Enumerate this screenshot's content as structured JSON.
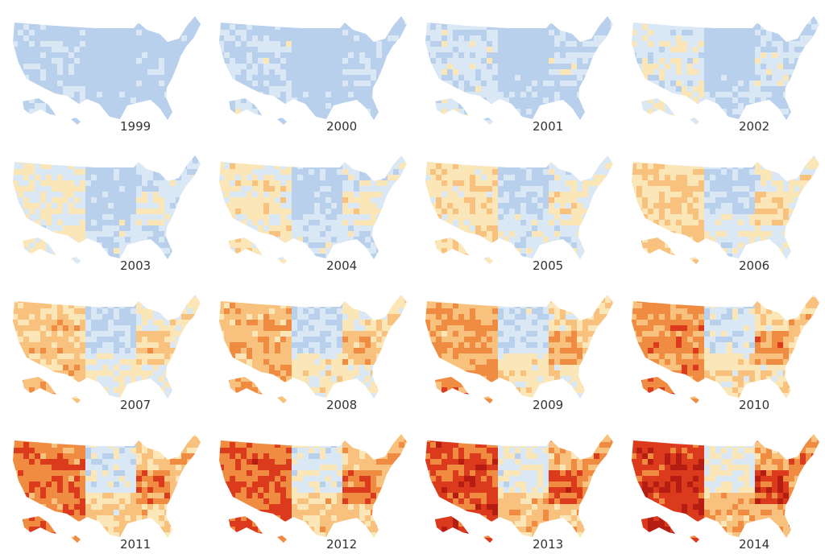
{
  "panels": [
    {
      "label": "1999"
    },
    {
      "label": "2000"
    },
    {
      "label": "2001"
    },
    {
      "label": "2002"
    },
    {
      "label": "2003"
    },
    {
      "label": "2004"
    },
    {
      "label": "2005"
    },
    {
      "label": "2006"
    },
    {
      "label": "2007"
    },
    {
      "label": "2008"
    },
    {
      "label": "2009"
    },
    {
      "label": "2010"
    },
    {
      "label": "2011"
    },
    {
      "label": "2012"
    },
    {
      "label": "2013"
    },
    {
      "label": "2014"
    }
  ]
}
